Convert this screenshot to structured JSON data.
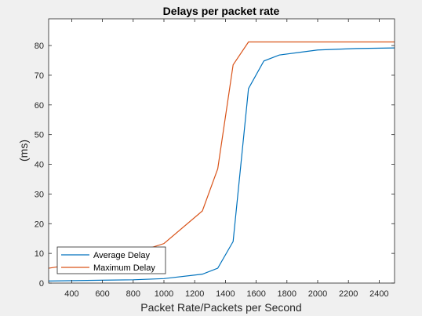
{
  "chart_data": {
    "type": "line",
    "title": "Delays per packet rate",
    "xlabel": "Packet Rate/Packets per Second",
    "ylabel": "(ms)",
    "xlim": [
      250,
      2500
    ],
    "ylim": [
      0,
      89
    ],
    "xticks": [
      400,
      600,
      800,
      1000,
      1200,
      1400,
      1600,
      1800,
      2000,
      2200,
      2400
    ],
    "yticks": [
      0,
      10,
      20,
      30,
      40,
      50,
      60,
      70,
      80
    ],
    "grid": false,
    "legend_location": "bottom-left",
    "series": [
      {
        "name": "Average Delay",
        "color": "#0072bd",
        "x": [
          250,
          500,
          800,
          1000,
          1250,
          1350,
          1450,
          1550,
          1650,
          1750,
          2000,
          2250,
          2500
        ],
        "y": [
          0.7,
          0.9,
          1.1,
          1.5,
          3.0,
          5.0,
          14.0,
          65.5,
          74.8,
          76.8,
          78.5,
          79.0,
          79.2
        ]
      },
      {
        "name": "Maximum Delay",
        "color": "#d95319",
        "x": [
          250,
          500,
          800,
          1000,
          1250,
          1350,
          1450,
          1550,
          1650,
          1750,
          2000,
          2250,
          2500
        ],
        "y": [
          5.0,
          7.0,
          10.0,
          13.3,
          24.3,
          38.5,
          73.5,
          81.2,
          81.2,
          81.2,
          81.2,
          81.2,
          81.2
        ]
      }
    ]
  }
}
